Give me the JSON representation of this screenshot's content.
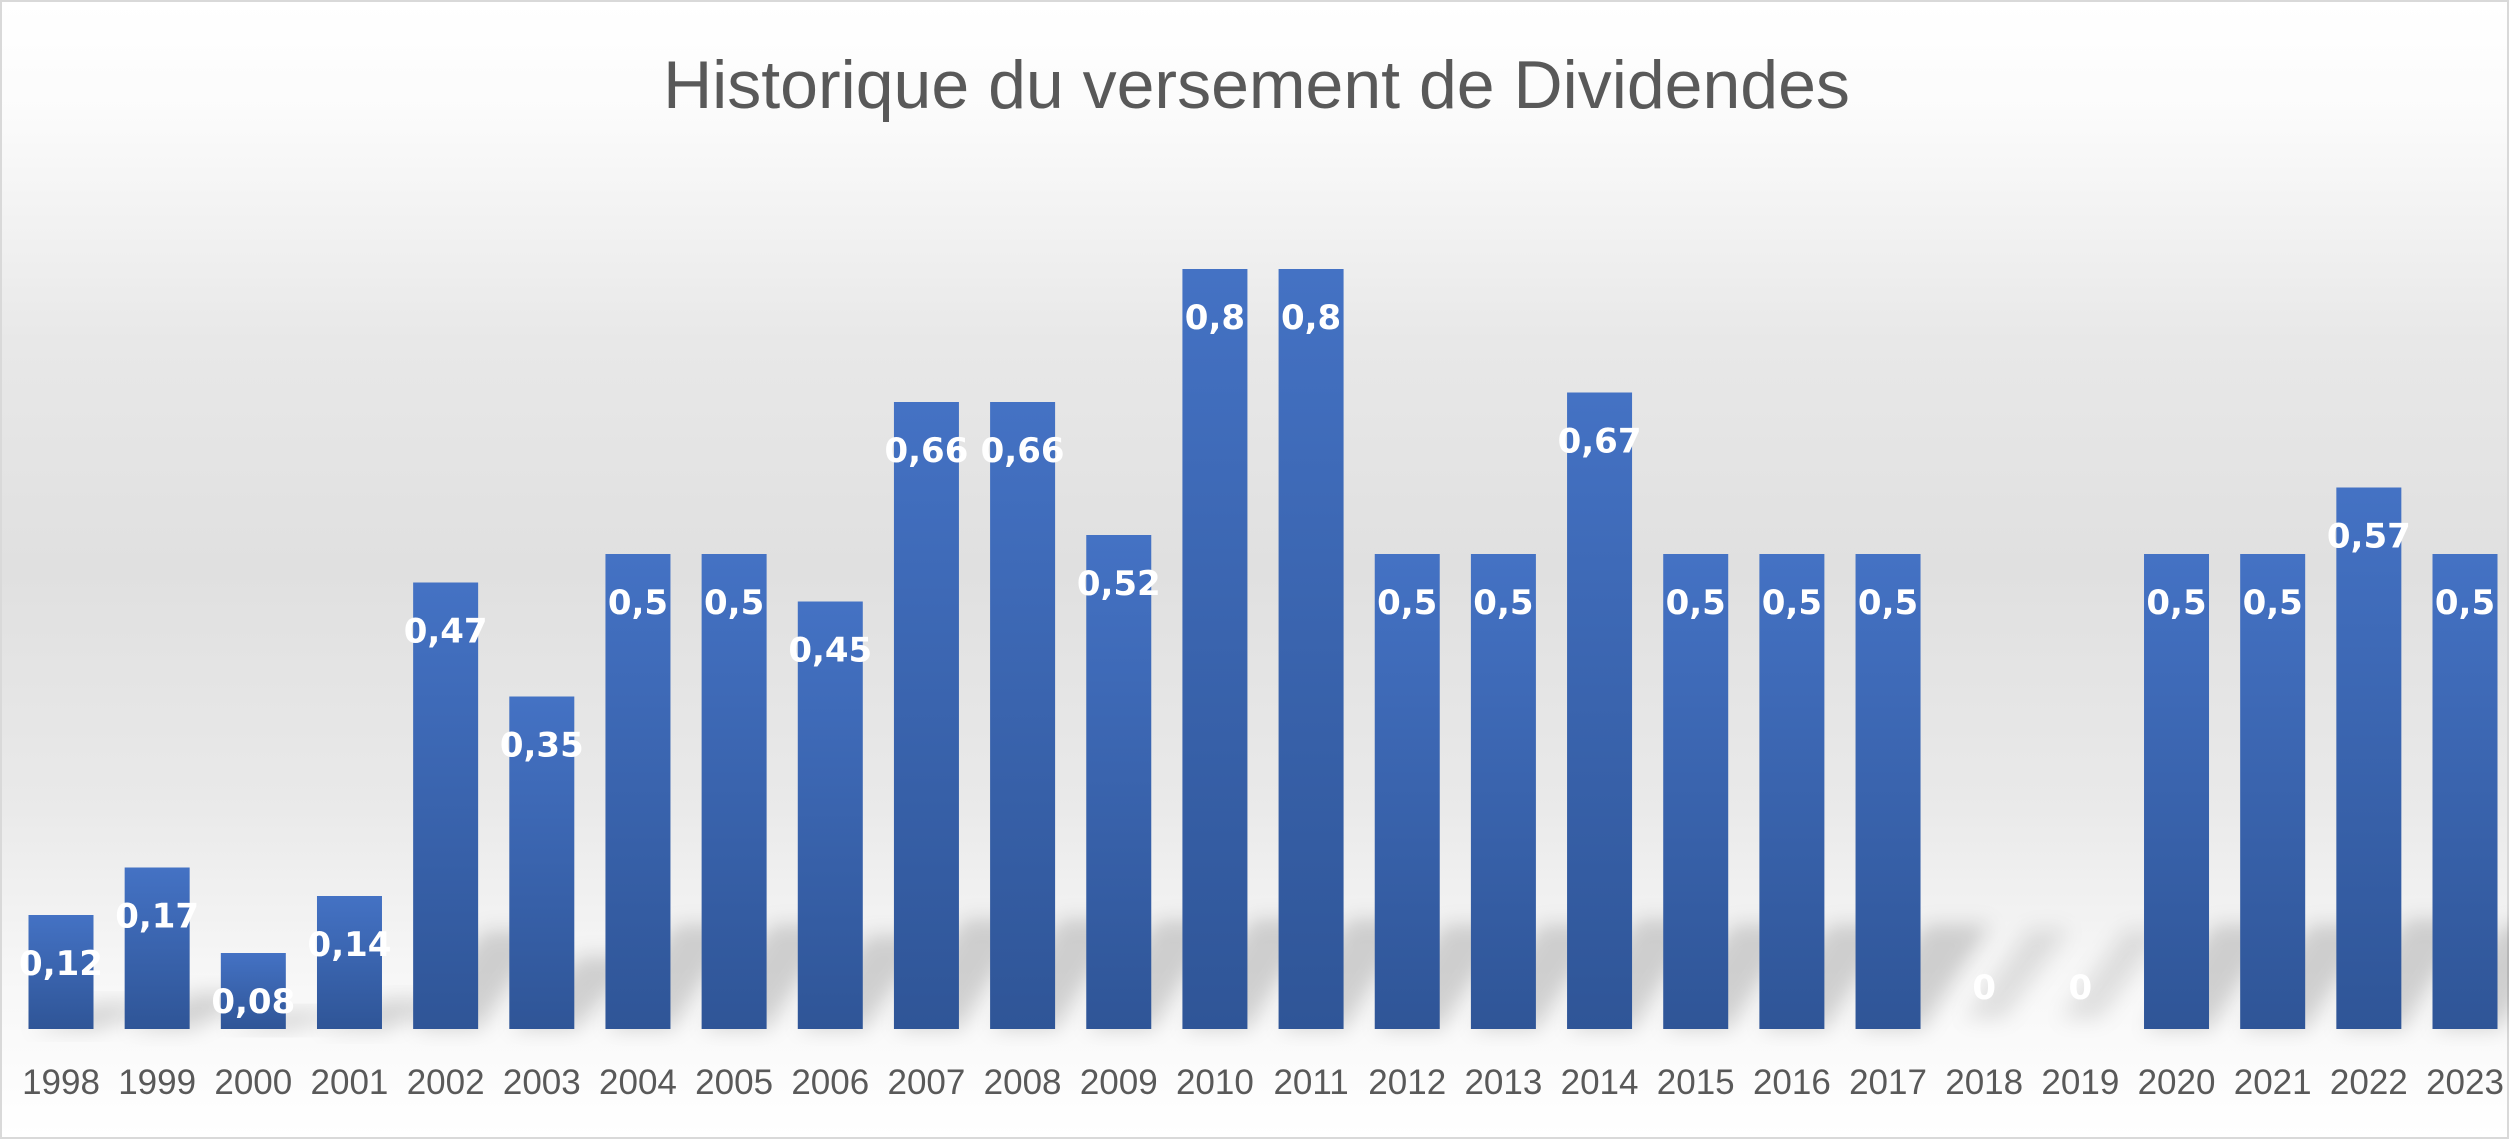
{
  "chart_data": {
    "type": "bar",
    "title": "Historique du versement de Dividendes",
    "xlabel": "",
    "ylabel": "",
    "categories": [
      "1998",
      "1999",
      "2000",
      "2001",
      "2002",
      "2003",
      "2004",
      "2005",
      "2006",
      "2007",
      "2008",
      "2009",
      "2010",
      "2011",
      "2012",
      "2013",
      "2014",
      "2015",
      "2016",
      "2017",
      "2018",
      "2019",
      "2020",
      "2021",
      "2022",
      "2023"
    ],
    "values": [
      0.12,
      0.17,
      0.08,
      0.14,
      0.47,
      0.35,
      0.5,
      0.5,
      0.45,
      0.66,
      0.66,
      0.52,
      0.8,
      0.8,
      0.5,
      0.5,
      0.67,
      0.5,
      0.5,
      0.5,
      0,
      0,
      0.5,
      0.5,
      0.57,
      0.5
    ],
    "data_labels": [
      "0,12",
      "0,17",
      "0,08",
      "0,14",
      "0,47",
      "0,35",
      "0,5",
      "0,5",
      "0,45",
      "0,66",
      "0,66",
      "0,52",
      "0,8",
      "0,8",
      "0,5",
      "0,5",
      "0,67",
      "0,5",
      "0,5",
      "0,5",
      "0",
      "0",
      "0,5",
      "0,5",
      "0,57",
      "0,5"
    ],
    "ylim": [
      0,
      0.9
    ],
    "grid": false,
    "legend": "none",
    "colors": {
      "bar_top": "#4472c4",
      "bar_bottom": "#2f5597",
      "title": "#595959",
      "tick": "#595959",
      "data_label": "#ffffff"
    }
  }
}
